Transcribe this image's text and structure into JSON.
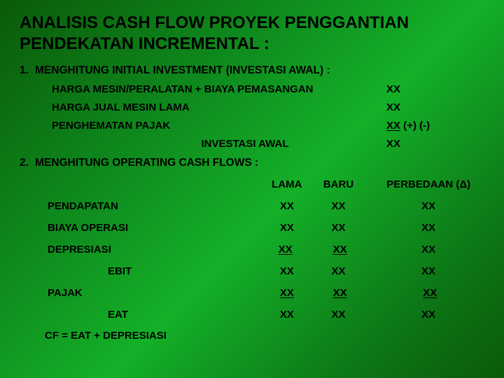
{
  "colors": {
    "bg_grad_a": "#0a5a0a",
    "bg_grad_b": "#0f8f1f",
    "bg_grad_c": "#14b028",
    "text": "#000000",
    "dim_text": "#023d02"
  },
  "title_line1": "ANALISIS CASH FLOW PROYEK PENGGANTIAN",
  "title_line2": "PENDEKATAN INCREMENTAL :",
  "section1": {
    "num": "1.",
    "heading": "MENGHITUNG INITIAL INVESTMENT (INVESTASI AWAL)",
    "heading_tail": " :",
    "rows": [
      {
        "label": "HARGA MESIN/PERALATAN + BIAYA PEMASANGAN",
        "value": "XX"
      },
      {
        "label": "HARGA JUAL MESIN LAMA",
        "value": "XX"
      },
      {
        "label": "PENGHEMATAN PAJAK",
        "value": "XX",
        "value_suffix": " (+) (-)",
        "underline": true
      }
    ],
    "total_label": "INVESTASI AWAL",
    "total_value": "XX"
  },
  "section2": {
    "num": "2.",
    "heading": "MENGHITUNG OPERATING CASH FLOWS :",
    "cols": [
      "LAMA",
      "BARU",
      "PERBEDAAN (Δ)"
    ],
    "rows": [
      {
        "label": "PENDAPATAN",
        "lama": "XX",
        "baru": "XX",
        "diff": "XX"
      },
      {
        "label": "BIAYA OPERASI",
        "lama": "XX",
        "baru": "XX",
        "diff": "XX"
      },
      {
        "label": "DEPRESIASI",
        "lama": "XX",
        "baru": "XX",
        "diff": "XX",
        "underline": true,
        "under_baru": true
      },
      {
        "label": "EBIT",
        "indent": true,
        "lama": "XX",
        "baru": "XX",
        "diff": "XX"
      },
      {
        "label": "PAJAK",
        "lama": "XX",
        "baru": "XX",
        "diff": "XX",
        "underline": true,
        "under_baru": true,
        "under_diff": true
      },
      {
        "label": "EAT",
        "indent": true,
        "lama": "XX",
        "baru": "XX",
        "diff": "XX"
      }
    ],
    "footer": "CF = EAT + DEPRESIASI"
  }
}
